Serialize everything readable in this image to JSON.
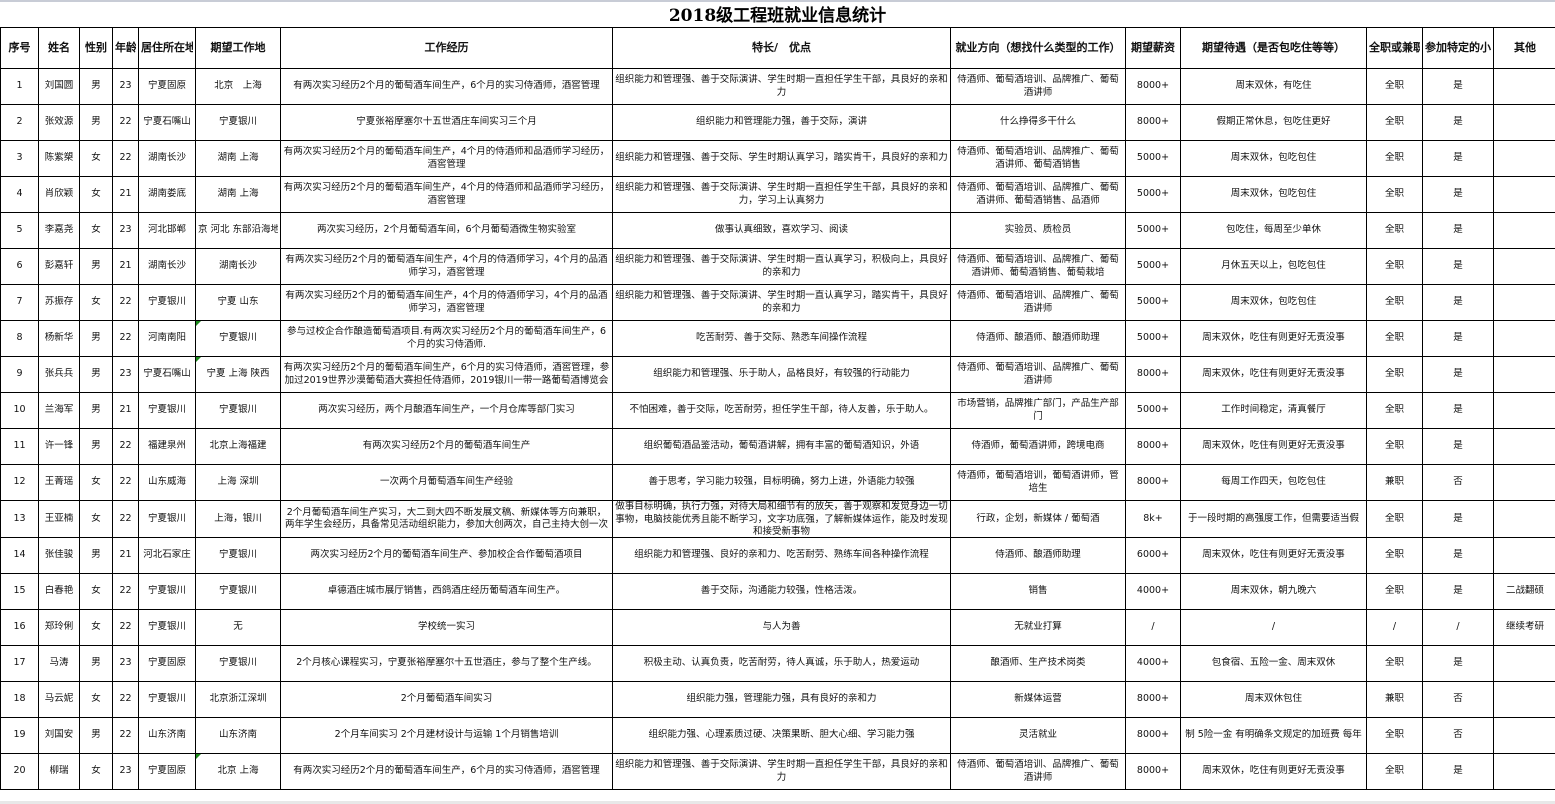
{
  "title": "2018级工程班就业信息统计",
  "headers": [
    "序号",
    "姓名",
    "性别",
    "年龄",
    "居住所在地",
    "期望工作地",
    "工作经历",
    "特长/　优点",
    "就业方向（想找什么类型的工作）",
    "期望薪资",
    "期望待遇（是否包吃住等等）",
    "全职或兼职",
    "参加特定的小",
    "其他"
  ],
  "rows": [
    [
      "1",
      "刘国圆",
      "男",
      "23",
      "宁夏固原",
      "北京　上海",
      "有两次实习经历2个月的葡萄酒车间生产，6个月的实习侍酒师，酒窖管理",
      "组织能力和管理强、善于交际演讲、学生时期一直担任学生干部，具良好的亲和力",
      "侍酒师、葡萄酒培训、品牌推广、葡萄酒讲师",
      "8000+",
      "周末双休，有吃住",
      "全职",
      "是",
      ""
    ],
    [
      "2",
      "张效源",
      "男",
      "22",
      "宁夏石嘴山",
      "宁夏银川",
      "宁夏张裕摩塞尔十五世酒庄车间实习三个月",
      "组织能力和管理能力强，善于交际，演讲",
      "什么挣得多干什么",
      "8000+",
      "假期正常休息，包吃住更好",
      "全职",
      "是",
      ""
    ],
    [
      "3",
      "陈紫槊",
      "女",
      "22",
      "湖南长沙",
      "湖南 上海",
      "有两次实习经历2个月的葡萄酒车间生产，4个月的侍酒师和品酒师学习经历，酒窖管理",
      "组织能力和管理强、善于交际、学生时期认真学习，踏实肯干，具良好的亲和力",
      "侍酒师、葡萄酒培训、品牌推广、葡萄酒讲师、葡萄酒销售",
      "5000+",
      "周末双休，包吃包住",
      "全职",
      "是",
      ""
    ],
    [
      "4",
      "肖欣颖",
      "女",
      "21",
      "湖南娄底",
      "湖南 上海",
      "有两次实习经历2个月的葡萄酒车间生产，4个月的侍酒师和品酒师学习经历，酒窖管理",
      "组织能力和管理强、善于交际演讲、学生时期一直担任学生干部，具良好的亲和力，学习上认真努力",
      "侍酒师、葡萄酒培训、品牌推广、葡萄酒讲师、葡萄酒销售、品酒师",
      "5000+",
      "周末双休，包吃包住",
      "全职",
      "是",
      ""
    ],
    [
      "5",
      "李嘉尧",
      "女",
      "23",
      "河北邯郸",
      "京 河北 东部沿海地",
      "两次实习经历，2个月葡萄酒车间，6个月葡萄酒微生物实验室",
      "做事认真细致，喜欢学习、阅读",
      "实验员、质检员",
      "5000+",
      "包吃住，每周至少单休",
      "全职",
      "是",
      ""
    ],
    [
      "6",
      "彭嘉轩",
      "男",
      "21",
      "湖南长沙",
      "湖南长沙",
      "有两次实习经历2个月的葡萄酒车间生产，4个月的侍酒师学习，4个月的品酒师学习，酒窖管理",
      "组织能力和管理强、善于交际演讲、学生时期一直认真学习，积极向上，具良好的亲和力",
      "侍酒师、葡萄酒培训、品牌推广、葡萄酒讲师、葡萄酒销售、葡萄栽培",
      "5000+",
      "月休五天以上，包吃包住",
      "全职",
      "是",
      ""
    ],
    [
      "7",
      "苏振存",
      "女",
      "22",
      "宁夏银川",
      "宁夏 山东",
      "有两次实习经历2个月的葡萄酒车间生产，4个月的侍酒师学习，4个月的品酒师学习，酒窖管理",
      "组织能力和管理强、善于交际演讲、学生时期一直认真学习，踏实肯干，具良好的亲和力",
      "侍酒师、葡萄酒培训、品牌推广、葡萄酒讲师",
      "5000+",
      "周末双休，包吃包住",
      "全职",
      "是",
      ""
    ],
    [
      "8",
      "杨新华",
      "男",
      "22",
      "河南南阳",
      "宁夏银川",
      "参与过校企合作酿造葡萄酒项目.有两次实习经历2个月的葡萄酒车间生产，6个月的实习侍酒师.",
      "吃苦耐劳、善于交际、熟悉车间操作流程",
      "侍酒师、酿酒师、酿酒师助理",
      "5000+",
      "周末双休，吃住有则更好无责没事",
      "全职",
      "是",
      ""
    ],
    [
      "9",
      "张兵兵",
      "男",
      "23",
      "宁夏石嘴山",
      "宁夏 上海 陕西",
      "有两次实习经历2个月的葡萄酒车间生产，6个月的实习侍酒师，酒窖管理，参加过2019世界沙漠葡萄酒大赛担任侍酒师，2019银川一带一路葡萄酒博览会",
      "组织能力和管理强、乐于助人，品格良好，有较强的行动能力",
      "侍酒师、葡萄酒培训、品牌推广、葡萄酒讲师",
      "8000+",
      "周末双休，吃住有则更好无责没事",
      "全职",
      "是",
      ""
    ],
    [
      "10",
      "兰海军",
      "男",
      "21",
      "宁夏银川",
      "宁夏银川",
      "两次实习经历，两个月酿酒车间生产，一个月仓库等部门实习",
      "不怕困难，善于交际，吃苦耐劳，担任学生干部，待人友善，乐于助人。",
      "市场营销，品牌推广部门，产品生产部门",
      "5000+",
      "工作时间稳定，清真餐厅",
      "全职",
      "是",
      ""
    ],
    [
      "11",
      "许一锋",
      "男",
      "22",
      "福建泉州",
      "北京上海福建",
      "有两次实习经历2个月的葡萄酒车间生产",
      "组织葡萄酒品鉴活动，葡萄酒讲解，拥有丰富的葡萄酒知识，外语",
      "侍酒师，葡萄酒讲师，跨境电商",
      "8000+",
      "周末双休，吃住有则更好无责没事",
      "全职",
      "是",
      ""
    ],
    [
      "12",
      "王菁瑶",
      "女",
      "22",
      "山东威海",
      "上海 深圳",
      "一次两个月葡萄酒车间生产经验",
      "善于思考，学习能力较强，目标明确，努力上进，外语能力较强",
      "侍酒师，葡萄酒培训，葡萄酒讲师，管培生",
      "8000+",
      "每周工作四天，包吃包住",
      "兼职",
      "否",
      ""
    ],
    [
      "13",
      "王亚楠",
      "女",
      "22",
      "宁夏银川",
      "上海，银川",
      "2个月葡萄酒车间生产实习，大二到大四不断发展文稿、新媒体等方向兼职，两年学生会经历，具备常见活动组织能力，参加大创两次，自己主持大创一次",
      "做事目标明确，执行力强，对待大局和细节有的放矢，善于观察和发觉身边一切事物，电脑技能优秀且能不断学习，文字功底强，了解新媒体运作，能及时发现和接受新事物",
      "行政，企划，新媒体 / 葡萄酒",
      "8k+",
      "于一段时期的高强度工作，但需要适当假",
      "全职",
      "是",
      ""
    ],
    [
      "14",
      "张佳骏",
      "男",
      "21",
      "河北石家庄",
      "宁夏银川",
      "两次实习经历2个月的葡萄酒车间生产、参加校企合作葡萄酒项目",
      "组织能力和管理强、良好的亲和力、吃苦耐劳、熟练车间各种操作流程",
      "侍酒师、酿酒师助理",
      "6000+",
      "周末双休，吃住有则更好无责没事",
      "全职",
      "是",
      ""
    ],
    [
      "15",
      "白春艳",
      "女",
      "22",
      "宁夏银川",
      "宁夏银川",
      "卓德酒庄城市展厅销售，西鸽酒庄经历葡萄酒车间生产。",
      "善于交际，沟通能力较强，性格活泼。",
      "销售",
      "4000+",
      "周末双休，朝九晚六",
      "全职",
      "是",
      "二战翻硕"
    ],
    [
      "16",
      "郑玲俐",
      "女",
      "22",
      "宁夏银川",
      "无",
      "学校统一实习",
      "与人为善",
      "无就业打算",
      "/",
      "/",
      "/",
      "/",
      "继续考研"
    ],
    [
      "17",
      "马涛",
      "男",
      "23",
      "宁夏固原",
      "宁夏银川",
      "2个月核心课程实习，宁夏张裕摩塞尔十五世酒庄，参与了整个生产线。",
      "积极主动、认真负责，吃苦耐劳，待人真诚，乐于助人，热爱运动",
      "酿酒师、生产技术岗类",
      "4000+",
      "包食宿、五险一金、周末双休",
      "全职",
      "是",
      ""
    ],
    [
      "18",
      "马云妮",
      "女",
      "22",
      "宁夏银川",
      "北京浙江深圳",
      "2个月葡萄酒车间实习",
      "组织能力强，管理能力强，具有良好的亲和力",
      "新媒体运营",
      "8000+",
      "周末双休包住",
      "兼职",
      "否",
      ""
    ],
    [
      "19",
      "刘国安",
      "男",
      "22",
      "山东济南",
      "山东济南",
      "2个月车间实习 2个月建材设计与运输 1个月销售培训",
      "组织能力强、心理素质过硬、决策果断、胆大心细、学习能力强",
      "灵活就业",
      "8000+",
      "制 5险一金 有明确条文规定的加班费 每年",
      "全职",
      "否",
      ""
    ],
    [
      "20",
      "柳瑞",
      "女",
      "23",
      "宁夏固原",
      "北京 上海",
      "有两次实习经历2个月的葡萄酒车间生产，6个月的实习侍酒师，酒窖管理",
      "组织能力和管理强、善于交际演讲、学生时期一直担任学生干部，具良好的亲和力",
      "侍酒师、葡萄酒培训、品牌推广、葡萄酒讲师",
      "8000+",
      "周末双休，吃住有则更好无责没事",
      "全职",
      "是",
      ""
    ]
  ],
  "comment_flags": {
    "note": "",
    "rows_with_comment_marker": [
      "8",
      "9",
      "20"
    ]
  },
  "colors": {
    "grid": "#000000",
    "comment_marker": "#1a8a1a"
  }
}
